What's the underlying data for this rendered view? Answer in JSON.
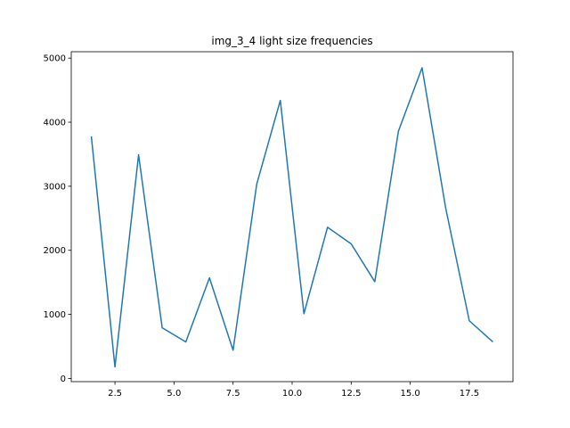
{
  "chart_data": {
    "type": "line",
    "title": "img_3_4 light size frequencies",
    "xlabel": "",
    "ylabel": "",
    "xlim": [
      0.65,
      19.35
    ],
    "ylim": [
      -50,
      5100
    ],
    "grid": false,
    "x_ticks": [
      2.5,
      5.0,
      7.5,
      10.0,
      12.5,
      15.0,
      17.5
    ],
    "x_tick_labels": [
      "2.5",
      "5.0",
      "7.5",
      "10.0",
      "12.5",
      "15.0",
      "17.5"
    ],
    "y_ticks": [
      0,
      1000,
      2000,
      3000,
      4000,
      5000
    ],
    "y_tick_labels": [
      "0",
      "1000",
      "2000",
      "3000",
      "4000",
      "5000"
    ],
    "series": [
      {
        "color": "#1f77b4",
        "x": [
          1.5,
          2.5,
          3.5,
          4.5,
          5.5,
          6.5,
          7.5,
          8.5,
          9.5,
          10.5,
          11.5,
          12.5,
          13.5,
          14.5,
          15.5,
          16.5,
          17.5,
          18.5
        ],
        "y": [
          3780,
          180,
          3490,
          790,
          570,
          1570,
          440,
          3030,
          4340,
          1010,
          2360,
          2100,
          1510,
          3860,
          4850,
          2660,
          900,
          570
        ]
      }
    ]
  }
}
